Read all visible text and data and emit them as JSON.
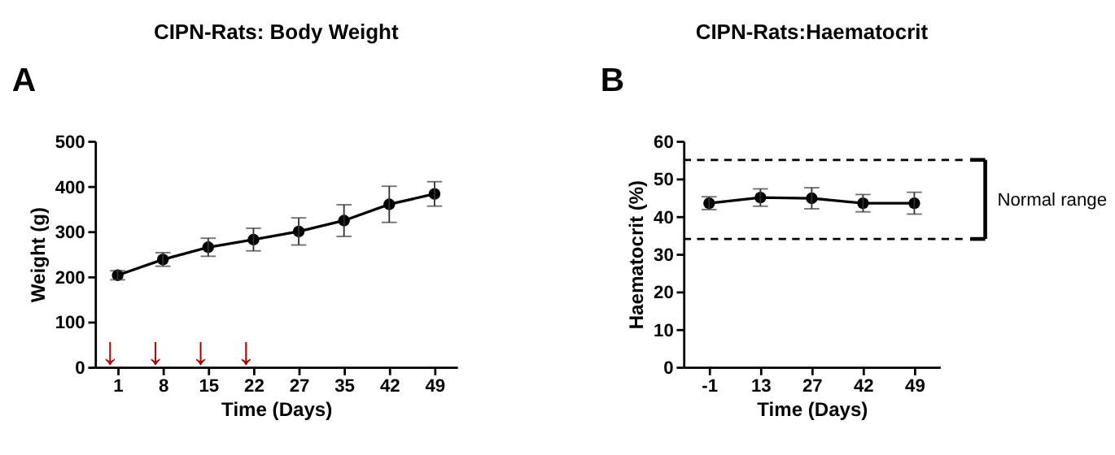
{
  "chart_data": [
    {
      "type": "line",
      "title": "CIPN-Rats: Body Weight",
      "xlabel": "Time (Days)",
      "ylabel": "Weight (g)",
      "categories": [
        "1",
        "8",
        "15",
        "22",
        "27",
        "35",
        "42",
        "49"
      ],
      "values": [
        203,
        238,
        265,
        282,
        300,
        324,
        360,
        383
      ],
      "errors": [
        10,
        15,
        20,
        25,
        30,
        35,
        40,
        27
      ],
      "color": "#000000",
      "marker": "circle",
      "ylim": [
        0,
        500
      ],
      "yticks": [
        0,
        100,
        200,
        300,
        400,
        500
      ],
      "annotations": [
        "A",
        "↓",
        "↓",
        "↓",
        "↓"
      ]
    },
    {
      "type": "line",
      "title": "CIPN-Rats:Haematocrit",
      "xlabel": "Time (Days)",
      "ylabel": "Haematocrit (%)",
      "categories": [
        "-1",
        "13",
        "27",
        "42",
        "49"
      ],
      "values": [
        43.5,
        45,
        44.8,
        43.5,
        43.5
      ],
      "errors": [
        1.7,
        2.3,
        2.8,
        2.3,
        2.9
      ],
      "color": "#000000",
      "marker": "circle",
      "ylim": [
        0,
        60
      ],
      "yticks": [
        0,
        10,
        20,
        30,
        40,
        50,
        60
      ],
      "ref_lines": [
        {
          "axis": "y",
          "value": 55,
          "line_style": "dashed"
        },
        {
          "axis": "y",
          "value": 34,
          "line_style": "dashed"
        }
      ],
      "annotations": [
        "B",
        "Normal range"
      ]
    }
  ]
}
